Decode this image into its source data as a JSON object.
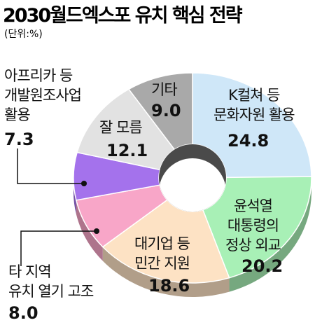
{
  "chart_data": {
    "type": "donut",
    "title": "2030월드엑스포 유치 핵심 전략",
    "subtitle": "(단위:%)",
    "categories": [
      "K컬쳐 등\n문화자원 활용",
      "윤석열\n대통령의\n정상 외교",
      "대기업 등\n민간 지원",
      "타 지역\n유치 열기 고조",
      "아프리카 등\n개발원조사업\n활용",
      "잘 모름",
      "기타"
    ],
    "values": [
      24.8,
      20.2,
      18.6,
      8.0,
      7.3,
      12.1,
      9.0
    ],
    "value_labels": [
      "24.8",
      "20.2",
      "18.6",
      "8.0",
      "7.3",
      "12.1",
      "9.0"
    ],
    "colors": [
      "#cfe7f8",
      "#a8f0b6",
      "#fde2c4",
      "#f8a6c8",
      "#a472ec",
      "#e2e2e2",
      "#a9a9a9"
    ]
  }
}
